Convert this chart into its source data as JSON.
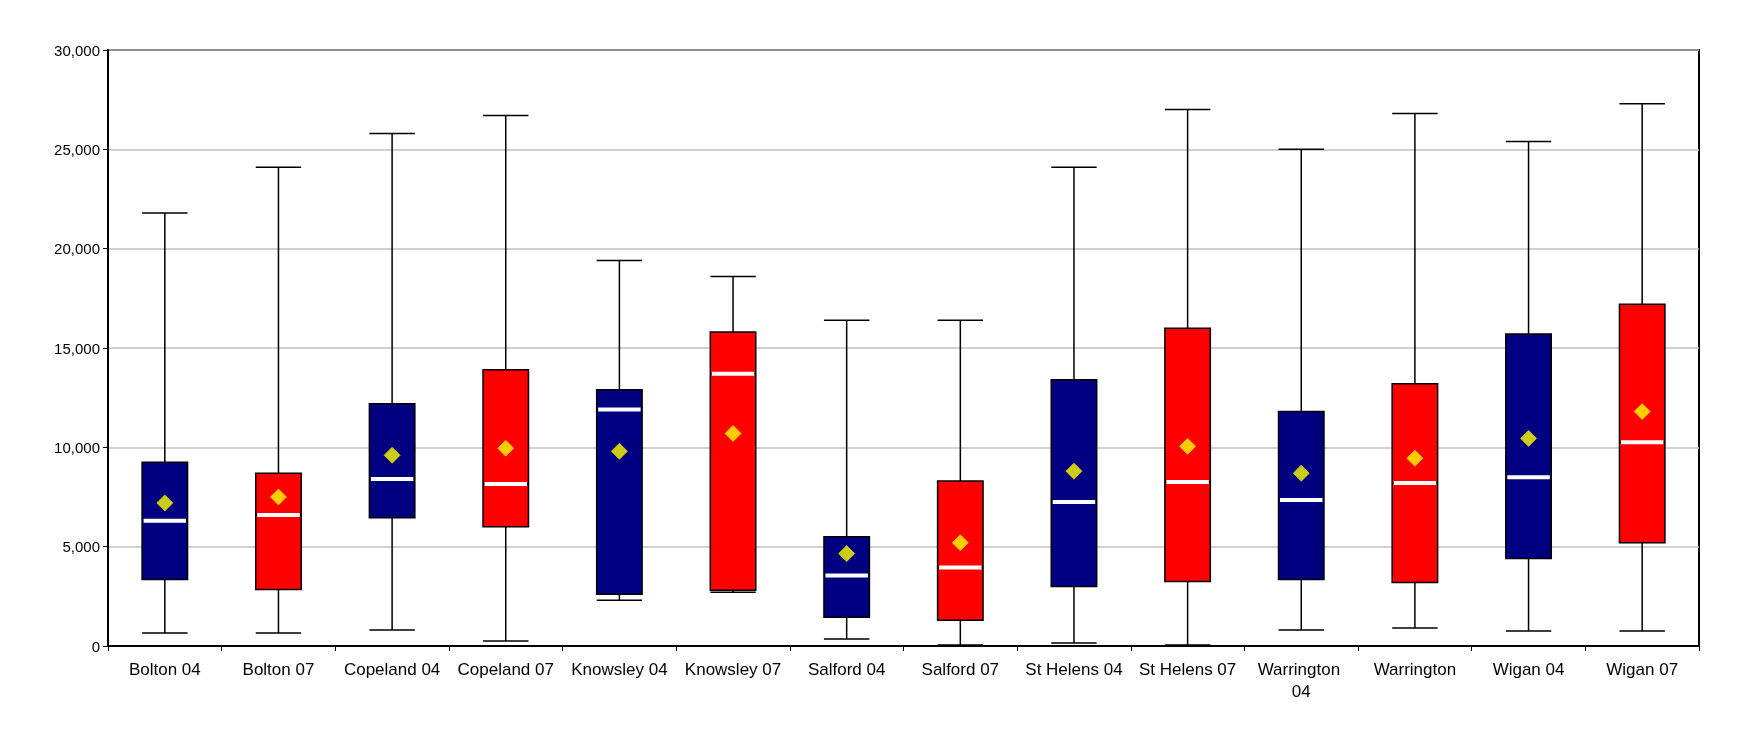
{
  "chart_data": {
    "type": "box",
    "categories": [
      "Bolton 04",
      "Bolton 07",
      "Copeland 04",
      "Copeland 07",
      "Knowsley 04",
      "Knowsley 07",
      "Salford 04",
      "Salford 07",
      "St Helens 04",
      "St Helens 07",
      "Warrington 04",
      "Warrington",
      "Wigan 04",
      "Wigan 07"
    ],
    "colors": [
      "#000080",
      "#ff0000",
      "#000080",
      "#ff0000",
      "#000080",
      "#ff0000",
      "#000080",
      "#ff0000",
      "#000080",
      "#ff0000",
      "#000080",
      "#ff0000",
      "#000080",
      "#ff0000"
    ],
    "boxes": [
      {
        "low": 650,
        "q1": 3350,
        "median": 6300,
        "q3": 9250,
        "high": 21800
      },
      {
        "low": 650,
        "q1": 2850,
        "median": 6600,
        "q3": 8700,
        "high": 24100
      },
      {
        "low": 800,
        "q1": 6450,
        "median": 8400,
        "q3": 12200,
        "high": 25800
      },
      {
        "low": 250,
        "q1": 6000,
        "median": 8150,
        "q3": 13900,
        "high": 26700
      },
      {
        "low": 2300,
        "q1": 2600,
        "median": 11900,
        "q3": 12900,
        "high": 19400
      },
      {
        "low": 2700,
        "q1": 2800,
        "median": 13700,
        "q3": 15800,
        "high": 18600
      },
      {
        "low": 350,
        "q1": 1450,
        "median": 3550,
        "q3": 5500,
        "high": 16400
      },
      {
        "low": 50,
        "q1": 1300,
        "median": 3950,
        "q3": 8300,
        "high": 16400
      },
      {
        "low": 150,
        "q1": 3000,
        "median": 7250,
        "q3": 13400,
        "high": 24100
      },
      {
        "low": 50,
        "q1": 3250,
        "median": 8250,
        "q3": 16000,
        "high": 27000
      },
      {
        "low": 800,
        "q1": 3350,
        "median": 7350,
        "q3": 11800,
        "high": 25000
      },
      {
        "low": 900,
        "q1": 3200,
        "median": 8200,
        "q3": 13200,
        "high": 26800
      },
      {
        "low": 750,
        "q1": 4400,
        "median": 8500,
        "q3": 15700,
        "high": 25400
      },
      {
        "low": 750,
        "q1": 5200,
        "median": 10250,
        "q3": 17200,
        "high": 27300
      }
    ],
    "series": [
      {
        "type": "scatter",
        "color": "#ffff00",
        "x": [
          "Bolton 04",
          "Bolton 07",
          "Copeland 04",
          "Copeland 07",
          "Knowsley 04",
          "Knowsley 07",
          "Salford 04",
          "Salford 07",
          "St Helens 04",
          "St Helens 07",
          "Warrington 04",
          "Warrington",
          "Wigan 04",
          "Wigan 07"
        ],
        "values": [
          7200,
          7500,
          9600,
          9950,
          9800,
          10700,
          4650,
          5200,
          8800,
          10050,
          8700,
          9450,
          10450,
          11800
        ]
      }
    ],
    "marker": "diamond",
    "ylim": [
      0,
      30000
    ],
    "yticks": [
      {
        "value": 0,
        "label": "0"
      },
      {
        "value": 5000,
        "label": "5,000"
      },
      {
        "value": 10000,
        "label": "10,000"
      },
      {
        "value": 15000,
        "label": "15,000"
      },
      {
        "value": 20000,
        "label": "20,000"
      },
      {
        "value": 25000,
        "label": "25,000"
      },
      {
        "value": 30000,
        "label": "30,000"
      }
    ],
    "grid": "y"
  }
}
